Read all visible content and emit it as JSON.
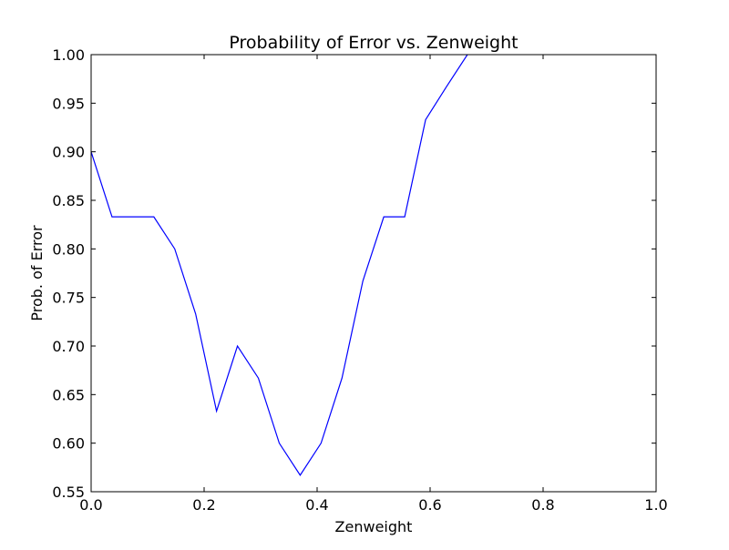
{
  "chart_data": {
    "type": "line",
    "title": "Probability of Error vs. Zenweight",
    "xlabel": "Zenweight",
    "ylabel": "Prob. of Error",
    "xlim": [
      0.0,
      1.0
    ],
    "ylim": [
      0.55,
      1.0
    ],
    "xticks": [
      "0.0",
      "0.2",
      "0.4",
      "0.6",
      "0.8",
      "1.0"
    ],
    "yticks": [
      "0.55",
      "0.60",
      "0.65",
      "0.70",
      "0.75",
      "0.80",
      "0.85",
      "0.90",
      "0.95",
      "1.00"
    ],
    "grid": false,
    "series": [
      {
        "color": "#0000ff",
        "x": [
          0.0,
          0.037,
          0.074,
          0.111,
          0.148,
          0.185,
          0.222,
          0.259,
          0.296,
          0.333,
          0.37,
          0.407,
          0.444,
          0.481,
          0.518,
          0.555,
          0.592,
          0.629,
          0.666
        ],
        "y": [
          0.9,
          0.833,
          0.833,
          0.833,
          0.8,
          0.733,
          0.633,
          0.7,
          0.667,
          0.6,
          0.567,
          0.6,
          0.667,
          0.767,
          0.833,
          0.833,
          0.933,
          0.967,
          1.0
        ]
      }
    ]
  }
}
